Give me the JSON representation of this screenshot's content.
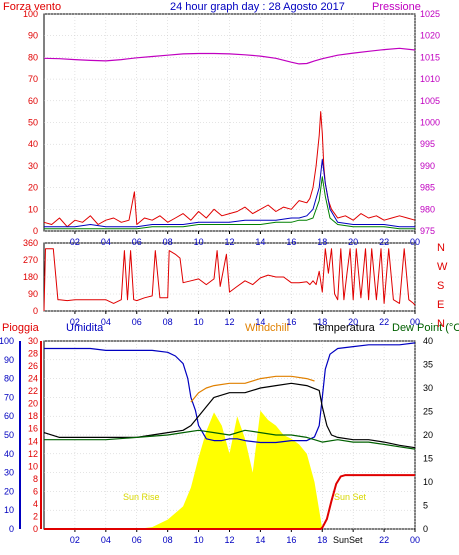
{
  "colors": {
    "wind": "#e00000",
    "gust": "#e00000",
    "wind_avg": "#0000c0",
    "wind_low": "#008000",
    "pressure": "#c000c0",
    "direction": "#e00000",
    "rain": "#e00000",
    "humidity": "#0000c0",
    "windchill": "#e08000",
    "temperature": "#000000",
    "dewpoint": "#006000",
    "solar": "#ffff00",
    "title": "#0000c0",
    "axis": "#000000"
  },
  "chart_data": [
    {
      "type": "line",
      "title": "24 hour graph day : 28 Agosto 2017",
      "left_label": "Forza vento",
      "right_label": "Pressione",
      "x_ticks": [
        "02",
        "04",
        "06",
        "08",
        "10",
        "12",
        "14",
        "16",
        "18",
        "20",
        "22",
        "00"
      ],
      "x_range": [
        0,
        24
      ],
      "y_left_ticks": [
        "0",
        "10",
        "20",
        "30",
        "40",
        "50",
        "60",
        "70",
        "80",
        "90",
        "100"
      ],
      "y_left_range": [
        0,
        100
      ],
      "y_right_ticks": [
        "975",
        "980",
        "985",
        "990",
        "995",
        "1000",
        "1005",
        "1010",
        "1015",
        "1020",
        "1025"
      ],
      "y_right_range": [
        975,
        1025
      ],
      "series": [
        {
          "key": "gust",
          "x": [
            0,
            0.5,
            1,
            1.5,
            2,
            2.5,
            3,
            3.5,
            4,
            4.5,
            5,
            5.5,
            5.85,
            6,
            6.5,
            7,
            7.5,
            8,
            8.5,
            9,
            9.5,
            10,
            10.5,
            11,
            11.5,
            12,
            12.5,
            13,
            13.5,
            14,
            14.5,
            15,
            15.5,
            16,
            16.5,
            17,
            17.2,
            17.4,
            17.6,
            17.8,
            17.9,
            18,
            18.1,
            18.2,
            18.4,
            18.6,
            18.8,
            19,
            19.5,
            20,
            20.5,
            21,
            21.5,
            22,
            22.5,
            23,
            23.5,
            24
          ],
          "y": [
            4,
            3,
            6,
            2,
            5,
            4,
            7,
            3,
            5,
            6,
            4,
            5,
            18,
            3,
            6,
            5,
            7,
            4,
            6,
            8,
            5,
            9,
            6,
            10,
            7,
            8,
            9,
            11,
            8,
            10,
            12,
            9,
            11,
            10,
            14,
            13,
            15,
            20,
            30,
            44,
            55,
            45,
            30,
            22,
            14,
            10,
            8,
            6,
            7,
            5,
            8,
            6,
            7,
            5,
            6,
            7,
            6,
            5
          ]
        },
        {
          "key": "wind_avg",
          "x": [
            0,
            1,
            2,
            3,
            4,
            5,
            6,
            7,
            8,
            9,
            10,
            11,
            12,
            13,
            14,
            15,
            16,
            16.5,
            17,
            17.4,
            17.8,
            18,
            18.2,
            18.5,
            19,
            20,
            21,
            22,
            23,
            24
          ],
          "y": [
            2,
            2,
            2,
            3,
            2,
            2,
            2,
            3,
            3,
            3,
            4,
            4,
            4,
            5,
            5,
            5,
            6,
            6,
            7,
            10,
            20,
            33,
            22,
            10,
            4,
            3,
            3,
            3,
            2,
            2
          ]
        },
        {
          "key": "wind_low",
          "x": [
            0,
            1,
            2,
            3,
            4,
            5,
            6,
            7,
            8,
            9,
            10,
            11,
            12,
            13,
            14,
            15,
            16,
            16.5,
            17,
            17.4,
            17.8,
            18,
            18.2,
            18.5,
            19,
            20,
            21,
            22,
            23,
            24
          ],
          "y": [
            1,
            1,
            1,
            1,
            1,
            1,
            1,
            2,
            2,
            2,
            3,
            3,
            3,
            3,
            3,
            4,
            4,
            5,
            5,
            6,
            14,
            25,
            16,
            6,
            3,
            2,
            2,
            2,
            1,
            1
          ]
        },
        {
          "key": "pressure",
          "axis": "right",
          "x": [
            0,
            1,
            2,
            3,
            4,
            5,
            6,
            7,
            8,
            9,
            10,
            11,
            12,
            13,
            14,
            15,
            16,
            16.5,
            17,
            17.5,
            18,
            19,
            20,
            21,
            22,
            23,
            24
          ],
          "y": [
            1014.8,
            1014.7,
            1014.5,
            1014.3,
            1014.2,
            1014.5,
            1014.9,
            1015.2,
            1015.5,
            1015.8,
            1015.9,
            1015.9,
            1015.8,
            1015.6,
            1015.3,
            1014.8,
            1013.9,
            1013.5,
            1013.6,
            1014.2,
            1014.7,
            1015.5,
            1016,
            1016.4,
            1016.8,
            1017.1,
            1016.7
          ]
        }
      ]
    },
    {
      "type": "line",
      "x_ticks": [
        "02",
        "04",
        "06",
        "08",
        "10",
        "12",
        "14",
        "16",
        "18",
        "20",
        "22",
        "00"
      ],
      "x_range": [
        0,
        24
      ],
      "y_ticks": [
        "0",
        "90",
        "180",
        "270",
        "360"
      ],
      "y_range": [
        0,
        360
      ],
      "right_labels": [
        "N",
        "W",
        "S",
        "E",
        "N"
      ],
      "series": [
        {
          "key": "direction",
          "x": [
            0,
            0.1,
            0.3,
            0.6,
            0.9,
            1,
            1.5,
            2,
            3,
            4,
            4.5,
            5,
            5.2,
            5.4,
            5.6,
            5.8,
            6,
            6.5,
            7,
            7.2,
            7.5,
            8,
            8.1,
            8.5,
            8.8,
            9,
            9.5,
            10,
            10.5,
            11,
            11.2,
            11.4,
            11.8,
            12,
            12.5,
            13,
            13.5,
            14,
            14.5,
            15,
            15.5,
            16,
            16.5,
            17,
            17.2,
            17.4,
            17.6,
            17.8,
            18,
            18.2,
            18.4,
            18.6,
            18.8,
            19,
            19.2,
            19.4,
            19.6,
            19.8,
            20,
            20.2,
            20.5,
            20.8,
            21,
            21.2,
            21.5,
            21.8,
            22,
            22.3,
            22.6,
            23,
            23.3,
            23.6,
            23.9,
            24
          ],
          "y": [
            0,
            330,
            330,
            330,
            60,
            60,
            55,
            60,
            60,
            60,
            40,
            60,
            320,
            60,
            320,
            60,
            55,
            70,
            80,
            320,
            70,
            70,
            320,
            300,
            280,
            150,
            160,
            170,
            140,
            170,
            320,
            130,
            300,
            100,
            130,
            160,
            140,
            175,
            190,
            180,
            180,
            150,
            150,
            155,
            140,
            160,
            140,
            210,
            100,
            330,
            200,
            330,
            90,
            60,
            330,
            60,
            200,
            330,
            60,
            330,
            70,
            330,
            60,
            330,
            60,
            330,
            40,
            330,
            60,
            40,
            330,
            60,
            40,
            30
          ]
        }
      ]
    },
    {
      "type": "line",
      "left_label": "Pioggia",
      "labels": [
        "Umidita",
        "Windchill",
        "Temperatura",
        "Dew Point (°C"
      ],
      "annotations": [
        "Sun Rise",
        "Sun Set",
        "SunSet"
      ],
      "x_ticks": [
        "02",
        "04",
        "06",
        "08",
        "10",
        "12",
        "14",
        "16",
        "18",
        "20",
        "22",
        "00"
      ],
      "x_range": [
        0,
        24
      ],
      "humidity_ticks": [
        "0",
        "10",
        "20",
        "30",
        "40",
        "50",
        "60",
        "70",
        "80",
        "90",
        "100"
      ],
      "humidity_range": [
        0,
        100
      ],
      "rain_ticks": [
        "0",
        "2",
        "4",
        "6",
        "8",
        "10",
        "12",
        "14",
        "16",
        "18",
        "20",
        "22",
        "24",
        "26",
        "28",
        "30"
      ],
      "rain_range": [
        0,
        30
      ],
      "temp_ticks": [
        "0",
        "5",
        "10",
        "15",
        "20",
        "25",
        "30",
        "35",
        "40"
      ],
      "temp_range": [
        0,
        40
      ],
      "series": [
        {
          "key": "humidity",
          "axis": "humidity",
          "x": [
            0,
            1,
            2,
            3,
            4,
            5,
            6,
            7,
            8,
            8.5,
            9,
            9.3,
            9.5,
            9.8,
            10,
            10.5,
            11,
            11.5,
            12,
            12.5,
            13,
            14,
            15,
            16,
            17,
            17.5,
            17.8,
            18,
            18.2,
            18.5,
            19,
            20,
            21,
            22,
            23,
            24
          ],
          "y": [
            96,
            96,
            96,
            96,
            95,
            95,
            95,
            95,
            94,
            92,
            88,
            80,
            70,
            63,
            55,
            48,
            47,
            47,
            48,
            48,
            47,
            46,
            46,
            47,
            47,
            49,
            55,
            70,
            85,
            93,
            96,
            97,
            98,
            98,
            98,
            99
          ]
        },
        {
          "key": "windchill",
          "axis": "temp",
          "x": [
            9.5,
            10,
            10.5,
            11,
            12,
            13,
            14,
            15,
            16,
            17,
            17.5
          ],
          "y": [
            27,
            29,
            30,
            30.5,
            31,
            31,
            32,
            32.5,
            32.5,
            32,
            31.5
          ]
        },
        {
          "key": "temperature",
          "axis": "temp",
          "x": [
            0,
            1,
            2,
            3,
            4,
            5,
            6,
            7,
            8,
            9,
            9.5,
            10,
            10.5,
            11,
            12,
            13,
            14,
            15,
            16,
            17,
            17.8,
            18,
            18.3,
            18.6,
            19,
            20,
            21,
            22,
            23,
            24
          ],
          "y": [
            20.5,
            19.5,
            19.5,
            19.5,
            19.5,
            19.5,
            19.5,
            20,
            20.5,
            21,
            22,
            24,
            26,
            28,
            29,
            29,
            30,
            30.5,
            31,
            30.5,
            29.5,
            26,
            22,
            20,
            19.5,
            19,
            19,
            18.5,
            17.8,
            17.3
          ]
        },
        {
          "key": "dewpoint",
          "axis": "temp",
          "x": [
            0,
            2,
            4,
            6,
            8,
            9,
            10,
            11,
            12,
            13,
            14,
            15,
            16,
            17,
            17.5,
            18,
            19,
            20,
            21,
            22,
            23,
            24
          ],
          "y": [
            19,
            19,
            19,
            19.5,
            20,
            20.5,
            21,
            20.5,
            20,
            21,
            20.5,
            20,
            20,
            19.5,
            19,
            18.5,
            19,
            18.5,
            18.5,
            18,
            17.5,
            17
          ]
        },
        {
          "key": "rain",
          "axis": "rain",
          "x": [
            0,
            17.9,
            18,
            18.3,
            18.6,
            18.9,
            19.2,
            19.5,
            24
          ],
          "y": [
            0,
            0,
            0.2,
            1.6,
            4.5,
            7.2,
            8.4,
            8.6,
            8.6
          ]
        },
        {
          "key": "solar",
          "axis": "humidity",
          "x": [
            6,
            7,
            8,
            9,
            9.5,
            10,
            10.5,
            11,
            11.5,
            12,
            12.5,
            13,
            13.5,
            14,
            14.5,
            15,
            15.5,
            16,
            16.5,
            17,
            17.5,
            18
          ],
          "y": [
            0,
            1,
            5,
            12,
            22,
            38,
            52,
            62,
            55,
            40,
            60,
            48,
            30,
            63,
            58,
            55,
            50,
            48,
            45,
            40,
            25,
            0
          ]
        }
      ]
    }
  ]
}
